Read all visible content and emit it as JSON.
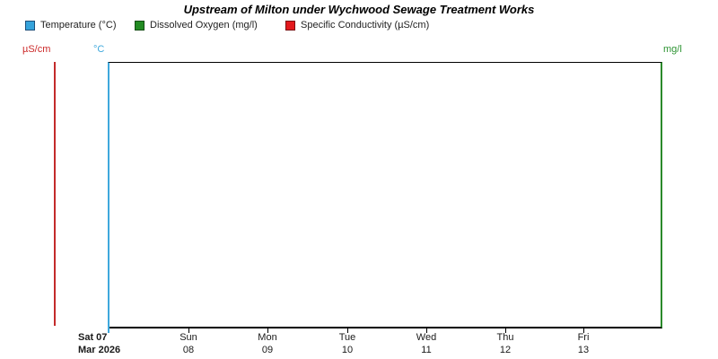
{
  "title": "Upstream of Milton under Wychwood Sewage Treatment Works",
  "legend": {
    "items": [
      {
        "label": "Temperature (°C)",
        "color": "#35a3db",
        "icon": "swatch-square"
      },
      {
        "label": "Dissolved Oxygen (mg/l)",
        "color": "#228b22",
        "icon": "swatch-square"
      },
      {
        "label": "Specific Conductivity (µS/cm)",
        "color": "#e3191d",
        "icon": "swatch-square"
      }
    ]
  },
  "axes": {
    "conductivity": {
      "label": "µS/cm",
      "color": "#cc2a2a",
      "side": "left-outer"
    },
    "temperature": {
      "label": "°C",
      "color": "#3fa8dc",
      "side": "left"
    },
    "dissolved_oxygen": {
      "label": "mg/l",
      "color": "#2e9433",
      "side": "right"
    }
  },
  "x_ticks": [
    {
      "day": "Sat 07",
      "date": "Mar 2026",
      "bold": true
    },
    {
      "day": "Sun",
      "date": "08"
    },
    {
      "day": "Mon",
      "date": "09"
    },
    {
      "day": "Tue",
      "date": "10"
    },
    {
      "day": "Wed",
      "date": "11"
    },
    {
      "day": "Thu",
      "date": "12"
    },
    {
      "day": "Fri",
      "date": "13"
    }
  ],
  "chart_data": {
    "type": "line",
    "title": "Upstream of Milton under Wychwood Sewage Treatment Works",
    "x_axis": {
      "type": "date",
      "tick_labels": [
        "Sat 07 Mar 2026",
        "Sun 08",
        "Mon 09",
        "Tue 10",
        "Wed 11",
        "Thu 12",
        "Fri 13"
      ],
      "range": [
        "Sat 07 Mar 2026",
        "Sat 14 Mar 2026"
      ]
    },
    "y_axes": [
      {
        "label": "µS/cm",
        "side": "left-outer",
        "color": "#cc2a2a",
        "tick_labels": []
      },
      {
        "label": "°C",
        "side": "left",
        "color": "#3fa8dc",
        "tick_labels": []
      },
      {
        "label": "mg/l",
        "side": "right",
        "color": "#2b8a2b",
        "tick_labels": []
      }
    ],
    "series": [
      {
        "name": "Temperature (°C)",
        "axis": "°C",
        "color": "#35a3db",
        "x": [],
        "values": []
      },
      {
        "name": "Dissolved Oxygen (mg/l)",
        "axis": "mg/l",
        "color": "#228b22",
        "x": [],
        "values": []
      },
      {
        "name": "Specific Conductivity (µS/cm)",
        "axis": "µS/cm",
        "color": "#e3191d",
        "x": [],
        "values": []
      }
    ],
    "legend_position": "top-left",
    "grid": false,
    "plot_empty": true
  }
}
